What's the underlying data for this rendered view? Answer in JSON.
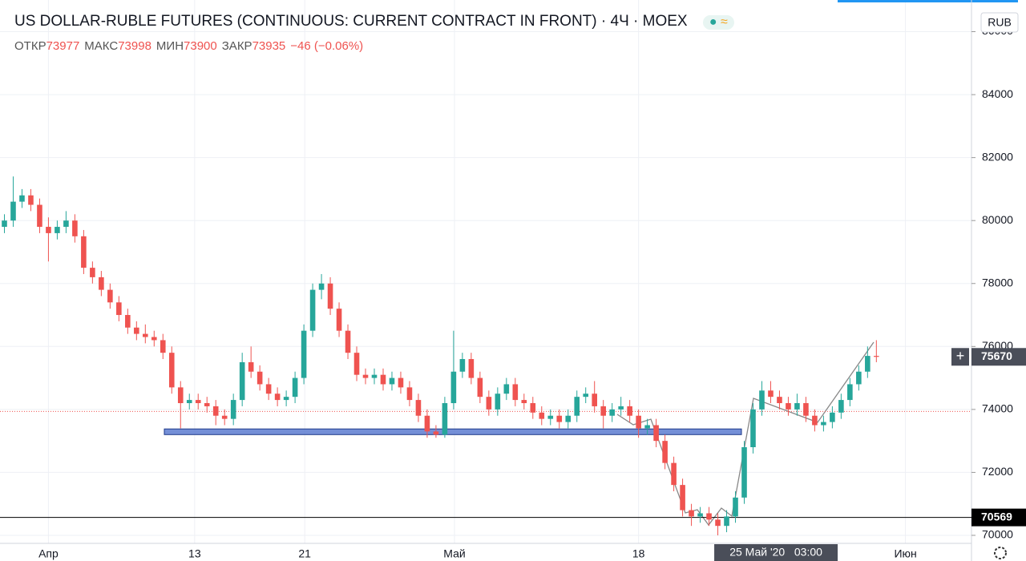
{
  "header": {
    "title": "US DOLLAR-RUBLE FUTURES (CONTINUOUS: CURRENT CONTRACT IN FRONT)",
    "interval": "4Ч",
    "exchange": "MOEX",
    "ohlc": [
      {
        "label": "ОТКР",
        "value": 73977
      },
      {
        "label": "МАКС",
        "value": 73998
      },
      {
        "label": "МИН",
        "value": 73900
      },
      {
        "label": "ЗАКР",
        "value": 73935
      }
    ],
    "change": "−46 (−0.06%)"
  },
  "chart_data": {
    "type": "candlestick",
    "currency": "RUB",
    "up_color": "#26a69a",
    "down_color": "#ef5350",
    "candles": [
      [
        79800,
        80200,
        79600,
        80000
      ],
      [
        80000,
        81400,
        79800,
        80600
      ],
      [
        80600,
        81000,
        80400,
        80800
      ],
      [
        80800,
        81000,
        80300,
        80500
      ],
      [
        80500,
        80700,
        79600,
        79800
      ],
      [
        79800,
        80100,
        78700,
        79600
      ],
      [
        79600,
        80000,
        79400,
        79800
      ],
      [
        79800,
        80300,
        79600,
        80000
      ],
      [
        80000,
        80200,
        79300,
        79500
      ],
      [
        79500,
        79700,
        78300,
        78500
      ],
      [
        78500,
        78700,
        78000,
        78200
      ],
      [
        78200,
        78400,
        77600,
        77800
      ],
      [
        77800,
        78000,
        77200,
        77400
      ],
      [
        77400,
        77600,
        76800,
        77000
      ],
      [
        77000,
        77200,
        76400,
        76600
      ],
      [
        76600,
        76800,
        76200,
        76400
      ],
      [
        76400,
        76700,
        76100,
        76300
      ],
      [
        76300,
        76500,
        76000,
        76200
      ],
      [
        76200,
        76400,
        75600,
        75800
      ],
      [
        75800,
        76000,
        74500,
        74700
      ],
      [
        74700,
        74900,
        73400,
        74200
      ],
      [
        74200,
        74500,
        74000,
        74300
      ],
      [
        74300,
        74500,
        74000,
        74200
      ],
      [
        74200,
        74400,
        73900,
        74100
      ],
      [
        74100,
        74300,
        73500,
        73800
      ],
      [
        73800,
        74000,
        73500,
        73700
      ],
      [
        73700,
        74500,
        73500,
        74300
      ],
      [
        74300,
        75800,
        74100,
        75500
      ],
      [
        75500,
        76000,
        75000,
        75200
      ],
      [
        75200,
        75400,
        74600,
        74800
      ],
      [
        74800,
        75000,
        74300,
        74500
      ],
      [
        74500,
        74700,
        74100,
        74300
      ],
      [
        74300,
        74600,
        74100,
        74400
      ],
      [
        74400,
        75200,
        74200,
        75000
      ],
      [
        75000,
        76700,
        74800,
        76500
      ],
      [
        76500,
        78000,
        76300,
        77800
      ],
      [
        77800,
        78300,
        77500,
        78000
      ],
      [
        78000,
        78200,
        77000,
        77200
      ],
      [
        77200,
        77400,
        76300,
        76500
      ],
      [
        76500,
        76700,
        75600,
        75800
      ],
      [
        75800,
        76000,
        74900,
        75100
      ],
      [
        75100,
        75300,
        74800,
        75000
      ],
      [
        75000,
        75300,
        74800,
        75100
      ],
      [
        75100,
        75300,
        74600,
        74800
      ],
      [
        74800,
        75200,
        74600,
        75000
      ],
      [
        75000,
        75200,
        74500,
        74700
      ],
      [
        74700,
        74900,
        74100,
        74300
      ],
      [
        74300,
        74500,
        73600,
        73800
      ],
      [
        73800,
        74000,
        73100,
        73300
      ],
      [
        73300,
        73500,
        73100,
        73200
      ],
      [
        73200,
        74400,
        73100,
        74200
      ],
      [
        74200,
        76500,
        74000,
        75200
      ],
      [
        75200,
        75800,
        75000,
        75600
      ],
      [
        75600,
        75800,
        74800,
        75000
      ],
      [
        75000,
        75200,
        74200,
        74400
      ],
      [
        74400,
        74600,
        73800,
        74000
      ],
      [
        74000,
        74700,
        73800,
        74500
      ],
      [
        74500,
        75000,
        74300,
        74800
      ],
      [
        74800,
        75000,
        74100,
        74300
      ],
      [
        74300,
        74500,
        74000,
        74200
      ],
      [
        74200,
        74400,
        73700,
        73900
      ],
      [
        73900,
        74100,
        73500,
        73700
      ],
      [
        73700,
        74000,
        73500,
        73800
      ],
      [
        73800,
        74000,
        73400,
        73600
      ],
      [
        73600,
        74000,
        73400,
        73800
      ],
      [
        73800,
        74600,
        73600,
        74400
      ],
      [
        74400,
        74700,
        74200,
        74500
      ],
      [
        74500,
        74900,
        73900,
        74100
      ],
      [
        74100,
        74300,
        73400,
        73800
      ],
      [
        73800,
        74200,
        73600,
        74000
      ],
      [
        74000,
        74400,
        73800,
        74100
      ],
      [
        74100,
        74300,
        73600,
        73800
      ],
      [
        73800,
        74000,
        73100,
        73400
      ],
      [
        73400,
        73700,
        73200,
        73500
      ],
      [
        73500,
        73700,
        72800,
        73000
      ],
      [
        73000,
        73200,
        72100,
        72300
      ],
      [
        72300,
        72500,
        71400,
        71600
      ],
      [
        71600,
        71800,
        70600,
        70800
      ],
      [
        70800,
        71000,
        70300,
        70600
      ],
      [
        70600,
        70900,
        70400,
        70700
      ],
      [
        70700,
        70900,
        70300,
        70500
      ],
      [
        70500,
        70700,
        70000,
        70300
      ],
      [
        70300,
        70800,
        70100,
        70600
      ],
      [
        70600,
        71400,
        70400,
        71200
      ],
      [
        71200,
        73000,
        71000,
        72800
      ],
      [
        72800,
        74200,
        72600,
        74000
      ],
      [
        74000,
        74900,
        73800,
        74600
      ],
      [
        74600,
        74900,
        74200,
        74400
      ],
      [
        74400,
        74600,
        74000,
        74200
      ],
      [
        74200,
        74400,
        73800,
        74000
      ],
      [
        74000,
        74500,
        73800,
        74200
      ],
      [
        74200,
        74400,
        73600,
        73800
      ],
      [
        73800,
        74000,
        73300,
        73500
      ],
      [
        73500,
        73800,
        73300,
        73600
      ],
      [
        73600,
        74100,
        73400,
        73900
      ],
      [
        73900,
        74500,
        73700,
        74300
      ],
      [
        74300,
        75000,
        74100,
        74800
      ],
      [
        74800,
        75400,
        74600,
        75200
      ],
      [
        75200,
        76000,
        75000,
        75700
      ],
      [
        75700,
        76200,
        75500,
        75670
      ]
    ],
    "ylim": [
      69745,
      87006
    ],
    "yticks": [
      70000,
      72000,
      74000,
      76000,
      78000,
      80000,
      82000,
      84000,
      86000
    ],
    "xlim": [
      -0.5,
      109.8
    ],
    "xticks": [
      {
        "value": 5,
        "label": "Апр"
      },
      {
        "value": 21.6,
        "label": "13"
      },
      {
        "value": 34.1,
        "label": "21"
      },
      {
        "value": 51.1,
        "label": "Май"
      },
      {
        "value": 72,
        "label": "18"
      },
      {
        "value": 102.3,
        "label": "Июн"
      }
    ],
    "cursor_time": {
      "value": 87.6,
      "label": "25 Май '20   03:00"
    },
    "last_price": 75670,
    "close_line": 73935,
    "support_zone": [
      73200,
      73380
    ],
    "hline": 70569
  }
}
